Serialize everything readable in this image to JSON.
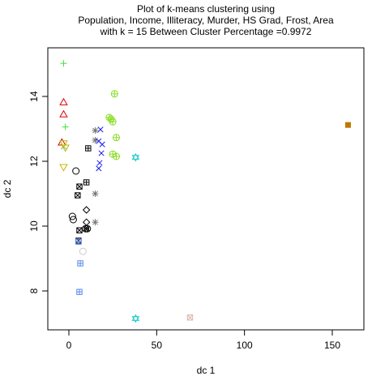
{
  "chart_data": {
    "type": "scatter",
    "title_lines": [
      "Plot of k-means clustering using",
      "Population, Income, Illiteracy, Murder, HS Grad, Frost, Area",
      "with  k = 15 Between Cluster Percentage =0.9972"
    ],
    "xlabel": "dc 1",
    "ylabel": "dc 2",
    "xlim": [
      -12,
      168
    ],
    "ylim": [
      6.8,
      15.5
    ],
    "xticks": [
      0,
      50,
      100,
      150
    ],
    "yticks": [
      8,
      10,
      12,
      14
    ],
    "grid": false,
    "legend": "none",
    "points": [
      {
        "x": -3,
        "y": 13.82,
        "shape": "triangle",
        "color": "#dd0000"
      },
      {
        "x": -3,
        "y": 13.45,
        "shape": "triangle",
        "color": "#dd0000"
      },
      {
        "x": -4,
        "y": 12.58,
        "shape": "triangle",
        "color": "#dd0000"
      },
      {
        "x": -3,
        "y": 15.02,
        "shape": "plus",
        "color": "#44dd44"
      },
      {
        "x": -2,
        "y": 13.06,
        "shape": "plus",
        "color": "#44dd44"
      },
      {
        "x": -3,
        "y": 12.45,
        "shape": "xmark",
        "color": "#33cc66"
      },
      {
        "x": -3,
        "y": 12.55,
        "shape": "triangle-down",
        "color": "#c8b400"
      },
      {
        "x": -2,
        "y": 12.42,
        "shape": "triangle-down",
        "color": "#c8b400"
      },
      {
        "x": -3,
        "y": 11.82,
        "shape": "triangle-down",
        "color": "#c8b400"
      },
      {
        "x": 4,
        "y": 11.7,
        "shape": "circle",
        "color": "#000000"
      },
      {
        "x": 2,
        "y": 10.3,
        "shape": "circle",
        "color": "#000000"
      },
      {
        "x": 2.5,
        "y": 10.2,
        "shape": "circle",
        "color": "#000000"
      },
      {
        "x": 6,
        "y": 11.22,
        "shape": "square-x",
        "color": "#000000"
      },
      {
        "x": 5,
        "y": 10.95,
        "shape": "square-x",
        "color": "#000000"
      },
      {
        "x": 6,
        "y": 9.87,
        "shape": "square-x",
        "color": "#000000"
      },
      {
        "x": 5.5,
        "y": 9.55,
        "shape": "square-x",
        "color": "#000000"
      },
      {
        "x": 11,
        "y": 12.4,
        "shape": "square-plus",
        "color": "#000000"
      },
      {
        "x": 10,
        "y": 11.35,
        "shape": "square-plus",
        "color": "#000000"
      },
      {
        "x": 10,
        "y": 10.5,
        "shape": "diamond",
        "color": "#000000"
      },
      {
        "x": 10,
        "y": 10.12,
        "shape": "diamond",
        "color": "#000000"
      },
      {
        "x": 9.5,
        "y": 9.92,
        "shape": "circle-x",
        "color": "#000000"
      },
      {
        "x": 10.5,
        "y": 9.92,
        "shape": "circle-x",
        "color": "#000000"
      },
      {
        "x": 15,
        "y": 12.95,
        "shape": "asterisk",
        "color": "#777777"
      },
      {
        "x": 15,
        "y": 12.65,
        "shape": "asterisk",
        "color": "#777777"
      },
      {
        "x": 15,
        "y": 11.0,
        "shape": "asterisk",
        "color": "#777777"
      },
      {
        "x": 15,
        "y": 10.12,
        "shape": "asterisk",
        "color": "#777777"
      },
      {
        "x": 18,
        "y": 12.98,
        "shape": "xmark",
        "color": "#1a1aee"
      },
      {
        "x": 17,
        "y": 12.62,
        "shape": "xmark",
        "color": "#1a1aee"
      },
      {
        "x": 19,
        "y": 12.52,
        "shape": "xmark",
        "color": "#1a1aee"
      },
      {
        "x": 18.5,
        "y": 12.25,
        "shape": "xmark",
        "color": "#1a1aee"
      },
      {
        "x": 17.5,
        "y": 11.95,
        "shape": "xmark",
        "color": "#1a1aee"
      },
      {
        "x": 17,
        "y": 11.78,
        "shape": "xmark",
        "color": "#1a1aee"
      },
      {
        "x": 26,
        "y": 14.08,
        "shape": "circle-plus",
        "color": "#88dd22"
      },
      {
        "x": 23,
        "y": 13.35,
        "shape": "circle-plus",
        "color": "#88dd22"
      },
      {
        "x": 24,
        "y": 13.3,
        "shape": "circle-plus",
        "color": "#88dd22"
      },
      {
        "x": 25,
        "y": 13.22,
        "shape": "circle-plus",
        "color": "#88dd22"
      },
      {
        "x": 27,
        "y": 12.73,
        "shape": "circle-plus",
        "color": "#88dd22"
      },
      {
        "x": 25,
        "y": 12.22,
        "shape": "circle-plus",
        "color": "#88dd22"
      },
      {
        "x": 27,
        "y": 12.15,
        "shape": "circle-plus",
        "color": "#88dd22"
      },
      {
        "x": 38,
        "y": 12.12,
        "shape": "star-david",
        "color": "#22cccc"
      },
      {
        "x": 38,
        "y": 7.15,
        "shape": "star-david",
        "color": "#22cccc"
      },
      {
        "x": 6.5,
        "y": 8.85,
        "shape": "square-plus",
        "color": "#5588ee"
      },
      {
        "x": 6,
        "y": 7.97,
        "shape": "square-plus",
        "color": "#5588ee"
      },
      {
        "x": 5.5,
        "y": 9.52,
        "shape": "square-plus",
        "color": "#5588ee"
      },
      {
        "x": 8,
        "y": 9.22,
        "shape": "circle",
        "color": "#cccccc"
      },
      {
        "x": 69,
        "y": 7.18,
        "shape": "square-x",
        "color": "#d8b8a8"
      },
      {
        "x": 159,
        "y": 13.12,
        "shape": "square-filled",
        "color": "#c07800"
      }
    ]
  }
}
